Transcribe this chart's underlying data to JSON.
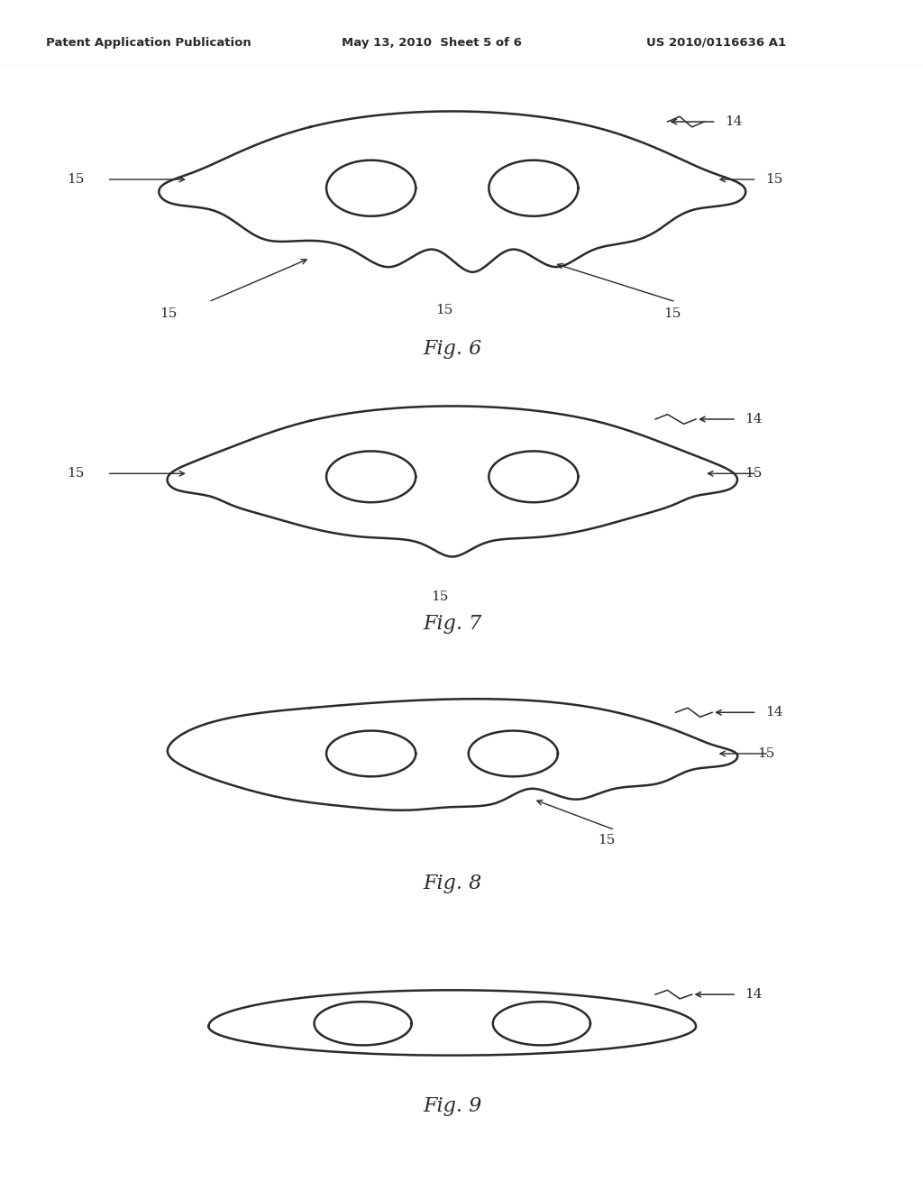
{
  "bg_color": "#ffffff",
  "line_color": "#2a2a2a",
  "line_width": 1.8,
  "header_text": "Patent Application Publication",
  "header_date": "May 13, 2010  Sheet 5 of 6",
  "header_patent": "US 2010/0116636 A1",
  "fig6_label": "Fig. 6",
  "fig7_label": "Fig. 7",
  "fig8_label": "Fig. 8",
  "fig9_label": "Fig. 9",
  "label_14": "14",
  "label_15": "15",
  "label_fontsize": 11,
  "fig_label_fontsize": 16
}
